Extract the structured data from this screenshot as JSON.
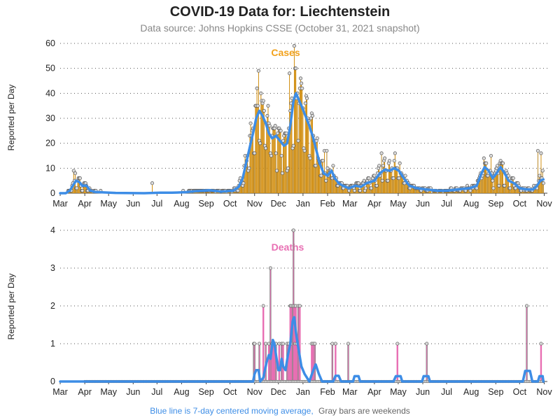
{
  "title": "COVID-19 Data for: Liechtenstein",
  "subtitle": "Data source: Johns Hopkins CSSE (October 31, 2021 snapshot)",
  "footnote": {
    "blue_part": "Blue line is 7-day centered moving average,",
    "gray_part": "Gray bars are weekends"
  },
  "colors": {
    "cases": "#f2a21c",
    "deaths": "#e86fb3",
    "moving_average": "#3d8de6",
    "weekend": "#888888",
    "marker_fill": "#dcdcdc"
  },
  "chart_data": [
    {
      "type": "bar",
      "label": "Cases",
      "ylabel": "Reported per Day",
      "ylim": [
        0,
        60
      ],
      "yticks": [
        0,
        10,
        20,
        30,
        40,
        50,
        60
      ],
      "xlim": [
        "2020-03-01",
        "2021-11-05"
      ],
      "xticks": [
        {
          "date": "2020-03-01",
          "label": "Mar"
        },
        {
          "date": "2020-04-01",
          "label": "Apr"
        },
        {
          "date": "2020-05-01",
          "label": "May"
        },
        {
          "date": "2020-06-01",
          "label": "Jun"
        },
        {
          "date": "2020-07-01",
          "label": "Jul"
        },
        {
          "date": "2020-08-01",
          "label": "Aug"
        },
        {
          "date": "2020-09-01",
          "label": "Sep"
        },
        {
          "date": "2020-10-01",
          "label": "Oct"
        },
        {
          "date": "2020-11-01",
          "label": "Nov"
        },
        {
          "date": "2020-12-01",
          "label": "Dec"
        },
        {
          "date": "2021-01-01",
          "label": "Jan"
        },
        {
          "date": "2021-02-01",
          "label": "Feb"
        },
        {
          "date": "2021-03-01",
          "label": "Mar"
        },
        {
          "date": "2021-04-01",
          "label": "Apr"
        },
        {
          "date": "2021-05-01",
          "label": "May"
        },
        {
          "date": "2021-06-01",
          "label": "Jun"
        },
        {
          "date": "2021-07-01",
          "label": "Jul"
        },
        {
          "date": "2021-08-01",
          "label": "Aug"
        },
        {
          "date": "2021-09-01",
          "label": "Sep"
        },
        {
          "date": "2021-10-01",
          "label": "Oct"
        },
        {
          "date": "2021-11-01",
          "label": "Nov"
        }
      ],
      "grid": "horizontal dotted",
      "weekly_profile": [
        0.55,
        1.15,
        1.25,
        1.2,
        1.15,
        1.1,
        0.6
      ],
      "moving_average": [
        [
          "2020-03-01",
          0
        ],
        [
          "2020-03-08",
          0
        ],
        [
          "2020-03-13",
          1
        ],
        [
          "2020-03-17",
          3
        ],
        [
          "2020-03-21",
          5
        ],
        [
          "2020-03-25",
          4.5
        ],
        [
          "2020-03-29",
          3
        ],
        [
          "2020-04-03",
          3
        ],
        [
          "2020-04-08",
          1
        ],
        [
          "2020-04-14",
          0.5
        ],
        [
          "2020-04-25",
          0.3
        ],
        [
          "2020-05-10",
          0.1
        ],
        [
          "2020-06-15",
          0
        ],
        [
          "2020-07-05",
          0.2
        ],
        [
          "2020-07-20",
          0.2
        ],
        [
          "2020-08-05",
          0.4
        ],
        [
          "2020-08-20",
          0.8
        ],
        [
          "2020-09-05",
          1.2
        ],
        [
          "2020-09-20",
          0.6
        ],
        [
          "2020-10-05",
          1
        ],
        [
          "2020-10-12",
          2.5
        ],
        [
          "2020-10-17",
          6
        ],
        [
          "2020-10-22",
          13
        ],
        [
          "2020-10-27",
          20
        ],
        [
          "2020-10-30",
          24
        ],
        [
          "2020-11-03",
          30
        ],
        [
          "2020-11-07",
          33
        ],
        [
          "2020-11-11",
          31
        ],
        [
          "2020-11-15",
          28
        ],
        [
          "2020-11-19",
          24
        ],
        [
          "2020-11-23",
          22
        ],
        [
          "2020-11-28",
          23
        ],
        [
          "2020-12-03",
          21
        ],
        [
          "2020-12-08",
          19
        ],
        [
          "2020-12-12",
          20
        ],
        [
          "2020-12-16",
          27
        ],
        [
          "2020-12-20",
          37
        ],
        [
          "2020-12-23",
          40
        ],
        [
          "2020-12-26",
          38
        ],
        [
          "2020-12-30",
          35
        ],
        [
          "2021-01-04",
          31
        ],
        [
          "2021-01-09",
          27
        ],
        [
          "2021-01-14",
          22
        ],
        [
          "2021-01-18",
          17
        ],
        [
          "2021-01-22",
          12
        ],
        [
          "2021-01-27",
          8
        ],
        [
          "2021-02-01",
          7
        ],
        [
          "2021-02-06",
          9
        ],
        [
          "2021-02-10",
          6
        ],
        [
          "2021-02-15",
          4
        ],
        [
          "2021-02-20",
          3
        ],
        [
          "2021-02-28",
          2
        ],
        [
          "2021-03-08",
          3
        ],
        [
          "2021-03-15",
          2.5
        ],
        [
          "2021-03-22",
          4
        ],
        [
          "2021-04-01",
          5
        ],
        [
          "2021-04-08",
          8
        ],
        [
          "2021-04-14",
          9.5
        ],
        [
          "2021-04-20",
          9
        ],
        [
          "2021-04-26",
          10
        ],
        [
          "2021-05-02",
          9
        ],
        [
          "2021-05-08",
          6
        ],
        [
          "2021-05-15",
          3
        ],
        [
          "2021-05-25",
          2
        ],
        [
          "2021-06-05",
          1.5
        ],
        [
          "2021-06-20",
          1
        ],
        [
          "2021-07-01",
          1
        ],
        [
          "2021-07-15",
          1.5
        ],
        [
          "2021-07-30",
          2
        ],
        [
          "2021-08-08",
          3
        ],
        [
          "2021-08-14",
          8
        ],
        [
          "2021-08-18",
          10.5
        ],
        [
          "2021-08-23",
          9
        ],
        [
          "2021-08-28",
          6
        ],
        [
          "2021-09-02",
          8
        ],
        [
          "2021-09-07",
          10.5
        ],
        [
          "2021-09-12",
          8
        ],
        [
          "2021-09-17",
          5
        ],
        [
          "2021-09-24",
          4
        ],
        [
          "2021-10-01",
          2
        ],
        [
          "2021-10-10",
          1.5
        ],
        [
          "2021-10-18",
          1.5
        ],
        [
          "2021-10-23",
          3
        ],
        [
          "2021-10-27",
          5
        ],
        [
          "2021-10-31",
          5.5
        ]
      ],
      "spikes": [
        {
          "date": "2020-03-18",
          "value": 9
        },
        {
          "date": "2020-03-20",
          "value": 8
        },
        {
          "date": "2020-06-25",
          "value": 4
        },
        {
          "date": "2020-11-06",
          "value": 49
        },
        {
          "date": "2020-11-04",
          "value": 42
        },
        {
          "date": "2020-11-12",
          "value": 37
        },
        {
          "date": "2020-11-18",
          "value": 35
        },
        {
          "date": "2020-12-15",
          "value": 48
        },
        {
          "date": "2020-12-21",
          "value": 59
        },
        {
          "date": "2020-12-22",
          "value": 50
        },
        {
          "date": "2020-12-24",
          "value": 38
        },
        {
          "date": "2020-12-27",
          "value": 36
        },
        {
          "date": "2021-01-28",
          "value": 17
        },
        {
          "date": "2021-01-31",
          "value": 17
        },
        {
          "date": "2021-04-10",
          "value": 16
        },
        {
          "date": "2021-04-27",
          "value": 16
        },
        {
          "date": "2021-08-17",
          "value": 14
        },
        {
          "date": "2021-08-26",
          "value": 15
        },
        {
          "date": "2021-09-06",
          "value": 12
        },
        {
          "date": "2021-10-24",
          "value": 17
        },
        {
          "date": "2021-10-28",
          "value": 16
        },
        {
          "date": "2021-10-30",
          "value": 9
        }
      ]
    },
    {
      "type": "bar",
      "label": "Deaths",
      "ylabel": "Reported per Day",
      "ylim": [
        0,
        4
      ],
      "yticks": [
        0,
        1,
        2,
        3,
        4
      ],
      "xlim": [
        "2020-03-01",
        "2021-11-05"
      ],
      "grid": "horizontal dotted",
      "moving_average": [
        [
          "2020-03-01",
          0
        ],
        [
          "2020-10-30",
          0
        ],
        [
          "2020-11-01",
          0.2
        ],
        [
          "2020-11-03",
          0.3
        ],
        [
          "2020-11-06",
          0.3
        ],
        [
          "2020-11-08",
          0
        ],
        [
          "2020-11-12",
          0.1
        ],
        [
          "2020-11-16",
          0.5
        ],
        [
          "2020-11-19",
          0.7
        ],
        [
          "2020-11-21",
          0.6
        ],
        [
          "2020-11-24",
          1.1
        ],
        [
          "2020-11-26",
          1
        ],
        [
          "2020-11-28",
          0.7
        ],
        [
          "2020-12-01",
          0.3
        ],
        [
          "2020-12-03",
          0.3
        ],
        [
          "2020-12-05",
          0.6
        ],
        [
          "2020-12-07",
          0.4
        ],
        [
          "2020-12-10",
          0.3
        ],
        [
          "2020-12-13",
          0.7
        ],
        [
          "2020-12-16",
          1
        ],
        [
          "2020-12-19",
          1.6
        ],
        [
          "2020-12-21",
          1.7
        ],
        [
          "2020-12-23",
          1.3
        ],
        [
          "2020-12-26",
          0.9
        ],
        [
          "2020-12-30",
          0.4
        ],
        [
          "2021-01-03",
          0.2
        ],
        [
          "2021-01-06",
          0.1
        ],
        [
          "2021-01-09",
          0
        ],
        [
          "2021-01-14",
          0.3
        ],
        [
          "2021-01-17",
          0.45
        ],
        [
          "2021-01-21",
          0.2
        ],
        [
          "2021-01-25",
          0
        ],
        [
          "2021-02-08",
          0
        ],
        [
          "2021-02-11",
          0.15
        ],
        [
          "2021-02-15",
          0.15
        ],
        [
          "2021-02-18",
          0
        ],
        [
          "2021-03-05",
          0
        ],
        [
          "2021-03-07",
          0.14
        ],
        [
          "2021-03-12",
          0.14
        ],
        [
          "2021-03-14",
          0
        ],
        [
          "2021-04-25",
          0
        ],
        [
          "2021-04-28",
          0.14
        ],
        [
          "2021-05-04",
          0.14
        ],
        [
          "2021-05-06",
          0
        ],
        [
          "2021-05-31",
          0
        ],
        [
          "2021-06-02",
          0.14
        ],
        [
          "2021-06-08",
          0.14
        ],
        [
          "2021-06-10",
          0
        ],
        [
          "2021-10-05",
          0
        ],
        [
          "2021-10-08",
          0.28
        ],
        [
          "2021-10-14",
          0.28
        ],
        [
          "2021-10-17",
          0
        ],
        [
          "2021-10-24",
          0
        ],
        [
          "2021-10-26",
          0.14
        ],
        [
          "2021-10-30",
          0.14
        ],
        [
          "2021-10-31",
          0
        ]
      ],
      "bars": [
        {
          "date": "2020-10-31",
          "value": 1
        },
        {
          "date": "2020-11-01",
          "value": 1
        },
        {
          "date": "2020-11-07",
          "value": 1
        },
        {
          "date": "2020-11-12",
          "value": 2
        },
        {
          "date": "2020-11-15",
          "value": 1
        },
        {
          "date": "2020-11-19",
          "value": 1
        },
        {
          "date": "2020-11-21",
          "value": 3
        },
        {
          "date": "2020-11-23",
          "value": 1
        },
        {
          "date": "2020-11-24",
          "value": 1
        },
        {
          "date": "2020-11-26",
          "value": 1
        },
        {
          "date": "2020-11-28",
          "value": 1
        },
        {
          "date": "2020-12-02",
          "value": 1
        },
        {
          "date": "2020-12-05",
          "value": 1
        },
        {
          "date": "2020-12-07",
          "value": 1
        },
        {
          "date": "2020-12-12",
          "value": 1
        },
        {
          "date": "2020-12-14",
          "value": 1
        },
        {
          "date": "2020-12-16",
          "value": 2
        },
        {
          "date": "2020-12-17",
          "value": 2
        },
        {
          "date": "2020-12-18",
          "value": 1
        },
        {
          "date": "2020-12-19",
          "value": 2
        },
        {
          "date": "2020-12-20",
          "value": 4
        },
        {
          "date": "2020-12-21",
          "value": 2
        },
        {
          "date": "2020-12-22",
          "value": 1
        },
        {
          "date": "2020-12-23",
          "value": 2
        },
        {
          "date": "2020-12-24",
          "value": 1
        },
        {
          "date": "2020-12-26",
          "value": 2
        },
        {
          "date": "2020-12-28",
          "value": 2
        },
        {
          "date": "2021-01-12",
          "value": 1
        },
        {
          "date": "2021-01-14",
          "value": 1
        },
        {
          "date": "2021-01-16",
          "value": 1
        },
        {
          "date": "2021-02-07",
          "value": 1
        },
        {
          "date": "2021-02-11",
          "value": 1
        },
        {
          "date": "2021-02-27",
          "value": 1
        },
        {
          "date": "2021-04-30",
          "value": 1
        },
        {
          "date": "2021-06-06",
          "value": 1
        },
        {
          "date": "2021-10-10",
          "value": 2
        },
        {
          "date": "2021-10-28",
          "value": 1
        }
      ]
    }
  ]
}
